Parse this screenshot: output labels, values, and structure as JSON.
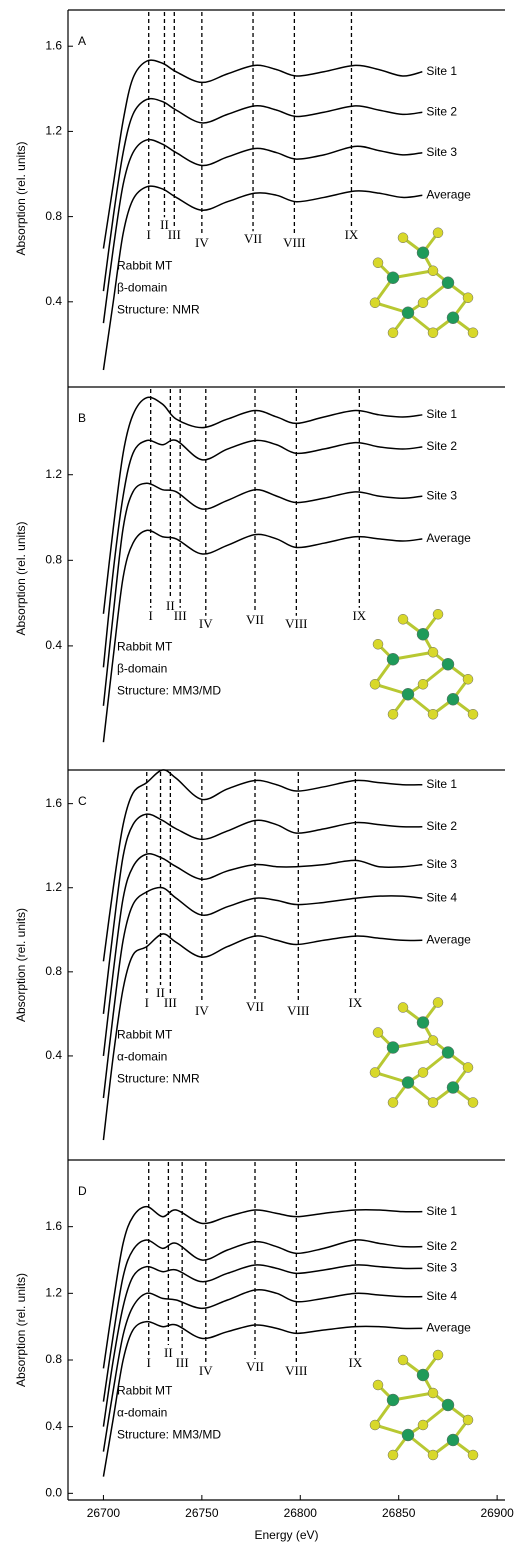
{
  "chart_data": [
    {
      "type": "line",
      "panel": "A",
      "y_label": "Absorption (rel. units)",
      "xlim": [
        26682,
        26904
      ],
      "ylim": [
        0,
        1.77
      ],
      "yticks": [
        0.4,
        0.8,
        1.2,
        1.6
      ],
      "x": [
        26700,
        26705,
        26710,
        26715,
        26722,
        26730,
        26737,
        26750,
        26763,
        26777,
        26788,
        26798,
        26812,
        26828,
        26840,
        26852,
        26862
      ],
      "series": [
        {
          "name": "Site 1",
          "color": "#000000",
          "values": [
            0.65,
            0.95,
            1.25,
            1.45,
            1.53,
            1.52,
            1.48,
            1.43,
            1.47,
            1.51,
            1.49,
            1.46,
            1.48,
            1.51,
            1.49,
            1.46,
            1.48
          ]
        },
        {
          "name": "Site 2",
          "color": "#000000",
          "values": [
            0.45,
            0.8,
            1.1,
            1.28,
            1.35,
            1.34,
            1.3,
            1.24,
            1.28,
            1.32,
            1.3,
            1.27,
            1.29,
            1.32,
            1.3,
            1.28,
            1.29
          ]
        },
        {
          "name": "Site 3",
          "color": "#000000",
          "values": [
            0.3,
            0.65,
            0.95,
            1.1,
            1.16,
            1.14,
            1.1,
            1.04,
            1.08,
            1.12,
            1.1,
            1.07,
            1.09,
            1.13,
            1.11,
            1.09,
            1.1
          ]
        },
        {
          "name": "Average",
          "color": "#000000",
          "values": [
            0.08,
            0.4,
            0.72,
            0.88,
            0.94,
            0.93,
            0.89,
            0.83,
            0.87,
            0.91,
            0.9,
            0.87,
            0.89,
            0.92,
            0.91,
            0.89,
            0.9
          ]
        }
      ],
      "markers": [
        {
          "x": 26723,
          "label": "I"
        },
        {
          "x": 26731,
          "label": "II"
        },
        {
          "x": 26736,
          "label": "III"
        },
        {
          "x": 26750,
          "label": "IV"
        },
        {
          "x": 26776,
          "label": "VII"
        },
        {
          "x": 26797,
          "label": "VIII"
        },
        {
          "x": 26826,
          "label": "IX"
        }
      ],
      "annotations": [
        "Rabbit MT",
        "β-domain",
        "Structure:  NMR"
      ]
    },
    {
      "type": "line",
      "panel": "B",
      "y_label": "Absorption (rel. units)",
      "xlim": [
        26682,
        26904
      ],
      "ylim": [
        -0.18,
        1.61
      ],
      "yticks": [
        0.4,
        0.8,
        1.2
      ],
      "x": [
        26700,
        26705,
        26710,
        26715,
        26722,
        26730,
        26737,
        26750,
        26763,
        26777,
        26788,
        26798,
        26812,
        26828,
        26840,
        26852,
        26862
      ],
      "series": [
        {
          "name": "Site 1",
          "color": "#000000",
          "values": [
            0.55,
            0.95,
            1.3,
            1.48,
            1.56,
            1.53,
            1.46,
            1.42,
            1.46,
            1.5,
            1.47,
            1.44,
            1.47,
            1.5,
            1.48,
            1.47,
            1.48
          ]
        },
        {
          "name": "Site 2",
          "color": "#000000",
          "values": [
            0.3,
            0.75,
            1.1,
            1.3,
            1.36,
            1.34,
            1.36,
            1.27,
            1.32,
            1.36,
            1.34,
            1.3,
            1.32,
            1.35,
            1.33,
            1.32,
            1.33
          ]
        },
        {
          "name": "Site 3",
          "color": "#000000",
          "values": [
            0.12,
            0.55,
            0.95,
            1.12,
            1.16,
            1.13,
            1.12,
            1.04,
            1.08,
            1.13,
            1.1,
            1.07,
            1.09,
            1.12,
            1.1,
            1.09,
            1.1
          ]
        },
        {
          "name": "Average",
          "color": "#000000",
          "values": [
            -0.05,
            0.35,
            0.72,
            0.88,
            0.94,
            0.91,
            0.9,
            0.83,
            0.87,
            0.92,
            0.9,
            0.86,
            0.88,
            0.91,
            0.9,
            0.89,
            0.9
          ]
        }
      ],
      "markers": [
        {
          "x": 26724,
          "label": "I"
        },
        {
          "x": 26734,
          "label": "II"
        },
        {
          "x": 26739,
          "label": "III"
        },
        {
          "x": 26752,
          "label": "IV"
        },
        {
          "x": 26777,
          "label": "VII"
        },
        {
          "x": 26798,
          "label": "VIII"
        },
        {
          "x": 26830,
          "label": "IX"
        }
      ],
      "annotations": [
        "Rabbit MT",
        "β-domain",
        "Structure:  MM3/MD"
      ]
    },
    {
      "type": "line",
      "panel": "C",
      "y_label": "Absorption (rel. units)",
      "xlim": [
        26682,
        26904
      ],
      "ylim": [
        -0.095,
        1.76
      ],
      "yticks": [
        0.4,
        0.8,
        1.2,
        1.6
      ],
      "x": [
        26700,
        26705,
        26710,
        26715,
        26722,
        26730,
        26737,
        26750,
        26763,
        26777,
        26788,
        26798,
        26812,
        26828,
        26840,
        26852,
        26862
      ],
      "series": [
        {
          "name": "Site 1",
          "color": "#000000",
          "values": [
            0.85,
            1.2,
            1.5,
            1.65,
            1.7,
            1.76,
            1.72,
            1.62,
            1.67,
            1.71,
            1.69,
            1.66,
            1.68,
            1.71,
            1.7,
            1.69,
            1.69
          ]
        },
        {
          "name": "Site 2",
          "color": "#000000",
          "values": [
            0.6,
            1.0,
            1.35,
            1.5,
            1.55,
            1.52,
            1.48,
            1.43,
            1.47,
            1.52,
            1.5,
            1.46,
            1.48,
            1.51,
            1.5,
            1.49,
            1.49
          ]
        },
        {
          "name": "Site 3",
          "color": "#000000",
          "values": [
            0.4,
            0.8,
            1.15,
            1.3,
            1.36,
            1.34,
            1.3,
            1.24,
            1.28,
            1.31,
            1.3,
            1.3,
            1.31,
            1.33,
            1.3,
            1.3,
            1.31
          ]
        },
        {
          "name": "Site 4",
          "color": "#000000",
          "values": [
            0.2,
            0.6,
            0.95,
            1.12,
            1.18,
            1.2,
            1.15,
            1.07,
            1.11,
            1.15,
            1.14,
            1.12,
            1.13,
            1.15,
            1.16,
            1.16,
            1.15
          ]
        },
        {
          "name": "Average",
          "color": "#000000",
          "values": [
            0.0,
            0.4,
            0.72,
            0.88,
            0.92,
            0.98,
            0.94,
            0.87,
            0.92,
            0.97,
            0.95,
            0.93,
            0.95,
            0.97,
            0.96,
            0.95,
            0.95
          ]
        }
      ],
      "markers": [
        {
          "x": 26722,
          "label": "I"
        },
        {
          "x": 26729,
          "label": "II"
        },
        {
          "x": 26734,
          "label": "III"
        },
        {
          "x": 26750,
          "label": "IV"
        },
        {
          "x": 26777,
          "label": "VII"
        },
        {
          "x": 26799,
          "label": "VIII"
        },
        {
          "x": 26828,
          "label": "IX"
        }
      ],
      "annotations": [
        "Rabbit MT",
        "α-domain",
        "Structure:  NMR"
      ]
    },
    {
      "type": "line",
      "panel": "D",
      "y_label": "Absorption (rel. units)",
      "x_label": "Energy (eV)",
      "xlim": [
        26682,
        26904
      ],
      "ylim": [
        -0.04,
        2.0
      ],
      "yticks": [
        {
          "value": 0,
          "label": "0.0"
        },
        0.4,
        0.8,
        1.2,
        1.6
      ],
      "xticks": [
        26700,
        26750,
        26800,
        26850,
        26900
      ],
      "x": [
        26700,
        26705,
        26710,
        26715,
        26722,
        26730,
        26737,
        26750,
        26763,
        26777,
        26788,
        26798,
        26812,
        26828,
        26840,
        26852,
        26862
      ],
      "series": [
        {
          "name": "Site 1",
          "color": "#000000",
          "values": [
            0.75,
            1.15,
            1.5,
            1.66,
            1.72,
            1.66,
            1.7,
            1.62,
            1.66,
            1.7,
            1.68,
            1.66,
            1.68,
            1.7,
            1.7,
            1.69,
            1.69
          ]
        },
        {
          "name": "Site 2",
          "color": "#000000",
          "values": [
            0.55,
            0.95,
            1.3,
            1.46,
            1.52,
            1.47,
            1.5,
            1.4,
            1.46,
            1.51,
            1.48,
            1.44,
            1.47,
            1.52,
            1.5,
            1.48,
            1.48
          ]
        },
        {
          "name": "Site 3",
          "color": "#000000",
          "values": [
            0.4,
            0.8,
            1.12,
            1.3,
            1.36,
            1.33,
            1.34,
            1.27,
            1.32,
            1.37,
            1.35,
            1.32,
            1.34,
            1.37,
            1.36,
            1.35,
            1.35
          ]
        },
        {
          "name": "Site 4",
          "color": "#000000",
          "values": [
            0.25,
            0.62,
            0.95,
            1.12,
            1.2,
            1.17,
            1.16,
            1.11,
            1.16,
            1.22,
            1.2,
            1.15,
            1.17,
            1.2,
            1.19,
            1.18,
            1.18
          ]
        },
        {
          "name": "Average",
          "color": "#000000",
          "values": [
            0.1,
            0.45,
            0.8,
            0.98,
            1.03,
            1.0,
            1.01,
            0.93,
            0.97,
            1.01,
            0.99,
            0.96,
            0.98,
            1.0,
            1.0,
            0.99,
            0.99
          ]
        }
      ],
      "markers": [
        {
          "x": 26723,
          "label": "I"
        },
        {
          "x": 26733,
          "label": "II"
        },
        {
          "x": 26740,
          "label": "III"
        },
        {
          "x": 26752,
          "label": "IV"
        },
        {
          "x": 26777,
          "label": "VII"
        },
        {
          "x": 26798,
          "label": "VIII"
        },
        {
          "x": 26828,
          "label": "IX"
        }
      ],
      "annotations": [
        "Rabbit MT",
        "α-domain",
        "Structure:  MM3/MD"
      ]
    }
  ]
}
